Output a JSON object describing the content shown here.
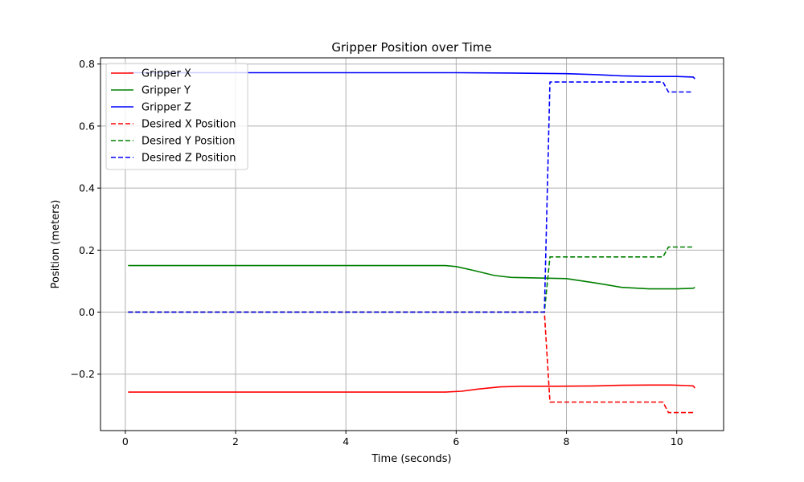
{
  "chart_data": {
    "type": "line",
    "title": "Gripper Position over Time",
    "xlabel": "Time (seconds)",
    "ylabel": "Position (meters)",
    "xlim": [
      -0.45,
      10.85
    ],
    "ylim": [
      -0.382,
      0.82
    ],
    "xticks": [
      0,
      2,
      4,
      6,
      8,
      10
    ],
    "xtick_labels": [
      "0",
      "2",
      "4",
      "6",
      "8",
      "10"
    ],
    "yticks": [
      -0.2,
      0.0,
      0.2,
      0.4,
      0.6,
      0.8
    ],
    "ytick_labels": [
      "−0.2",
      "0.0",
      "0.2",
      "0.4",
      "0.6",
      "0.8"
    ],
    "grid": true,
    "legend_position": "upper-left",
    "series": [
      {
        "name": "Gripper X",
        "color": "#ff0000",
        "style": "solid",
        "x": [
          0.05,
          5.8,
          6.1,
          6.4,
          6.8,
          7.2,
          7.8,
          8.5,
          9.0,
          9.5,
          9.9,
          10.2,
          10.3,
          10.33
        ],
        "y": [
          -0.258,
          -0.258,
          -0.255,
          -0.248,
          -0.241,
          -0.239,
          -0.239,
          -0.238,
          -0.236,
          -0.235,
          -0.235,
          -0.237,
          -0.238,
          -0.245
        ]
      },
      {
        "name": "Gripper Y",
        "color": "#008000",
        "style": "solid",
        "x": [
          0.05,
          5.8,
          6.0,
          6.3,
          6.7,
          7.0,
          7.5,
          8.0,
          8.5,
          9.0,
          9.5,
          10.0,
          10.3,
          10.33
        ],
        "y": [
          0.15,
          0.15,
          0.147,
          0.135,
          0.118,
          0.112,
          0.11,
          0.108,
          0.095,
          0.08,
          0.075,
          0.075,
          0.077,
          0.08
        ]
      },
      {
        "name": "Gripper Z",
        "color": "#0000ff",
        "style": "solid",
        "x": [
          0.05,
          6.0,
          7.0,
          8.0,
          8.5,
          9.0,
          9.5,
          10.0,
          10.3,
          10.33
        ],
        "y": [
          0.772,
          0.772,
          0.771,
          0.769,
          0.766,
          0.762,
          0.76,
          0.76,
          0.758,
          0.752
        ]
      },
      {
        "name": "Desired X Position",
        "color": "#ff0000",
        "style": "dashed",
        "x": [
          0.05,
          7.6,
          7.7,
          9.75,
          9.85,
          10.3
        ],
        "y": [
          0.0,
          0.0,
          -0.29,
          -0.29,
          -0.324,
          -0.324
        ]
      },
      {
        "name": "Desired Y Position",
        "color": "#008000",
        "style": "dashed",
        "x": [
          0.05,
          7.6,
          7.7,
          9.75,
          9.85,
          10.3
        ],
        "y": [
          0.0,
          0.0,
          0.178,
          0.178,
          0.21,
          0.21
        ]
      },
      {
        "name": "Desired Z Position",
        "color": "#0000ff",
        "style": "dashed",
        "x": [
          0.05,
          7.6,
          7.7,
          9.75,
          9.85,
          10.3
        ],
        "y": [
          0.0,
          0.0,
          0.742,
          0.742,
          0.71,
          0.71
        ]
      }
    ]
  }
}
